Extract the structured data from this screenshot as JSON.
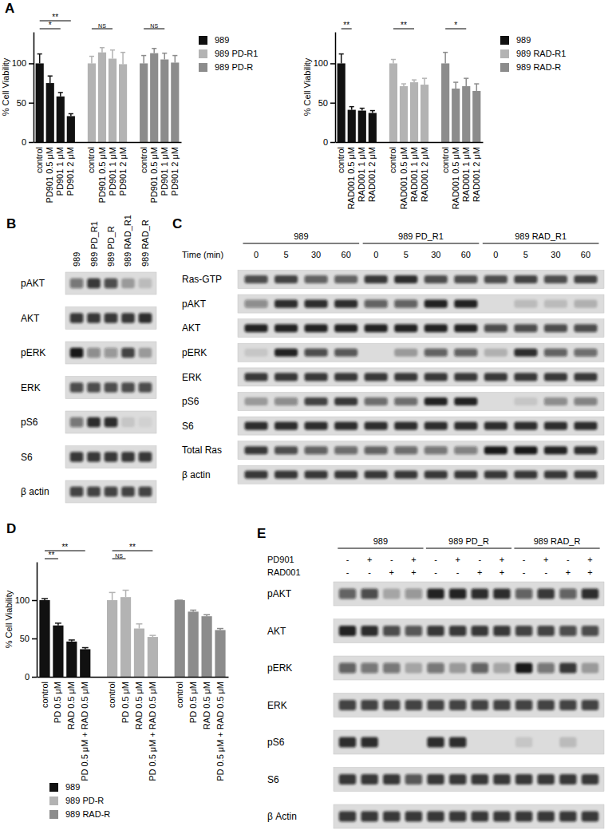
{
  "chart_data": [
    {
      "type": "bar",
      "panel": "A",
      "y_label": "% Cell Viability",
      "ylim": [
        0,
        140
      ],
      "yticks": [
        0,
        50,
        100
      ],
      "legend": "right",
      "grid": false,
      "series": [
        {
          "name": "989",
          "color": "#111111",
          "categories": [
            "control",
            "PD901 0.5 μM",
            "PD901 1 μM",
            "PD901 2 μM"
          ],
          "values": [
            100,
            75,
            58,
            33
          ],
          "errors": [
            12,
            9,
            5,
            3
          ]
        },
        {
          "name": "989 PD-R1",
          "color": "#b3b3b3",
          "categories": [
            "control",
            "PD901 0.5 μM",
            "PD901 1 μM",
            "PD901 2 μM"
          ],
          "values": [
            100,
            114,
            106,
            99
          ],
          "errors": [
            9,
            6,
            11,
            15
          ]
        },
        {
          "name": "989 PD-R",
          "color": "#8c8c8c",
          "categories": [
            "control",
            "PD901 0.5 μM",
            "PD901 1 μM",
            "PD901 2 μM"
          ],
          "values": [
            100,
            113,
            105,
            101
          ],
          "errors": [
            10,
            6,
            8,
            9
          ]
        }
      ],
      "annotations": [
        {
          "text": "*",
          "series": 0,
          "from": 0,
          "to": 2
        },
        {
          "text": "**",
          "series": 0,
          "from": 0,
          "to": 3
        },
        {
          "text": "NS",
          "series": 1,
          "from": 0,
          "to": 2
        },
        {
          "text": "NS",
          "series": 2,
          "from": 0,
          "to": 2
        }
      ]
    },
    {
      "type": "bar",
      "y_label": "% Cell Viability",
      "ylim": [
        0,
        140
      ],
      "yticks": [
        0,
        50,
        100
      ],
      "legend": "right",
      "grid": false,
      "series": [
        {
          "name": "989",
          "color": "#111111",
          "categories": [
            "control",
            "RAD001 0.5 μM",
            "RAD001 1 μM",
            "RAD001 2 μM"
          ],
          "values": [
            100,
            41,
            40,
            37
          ],
          "errors": [
            12,
            4,
            3,
            3
          ]
        },
        {
          "name": "989 RAD-R1",
          "color": "#b3b3b3",
          "categories": [
            "control",
            "RAD001 0.5 μM",
            "RAD001 1 μM",
            "RAD001 2 μM"
          ],
          "values": [
            100,
            71,
            76,
            73
          ],
          "errors": [
            5,
            3,
            3,
            8
          ]
        },
        {
          "name": "989 RAD-R",
          "color": "#8c8c8c",
          "categories": [
            "control",
            "RAD001 0.5 μM",
            "RAD001 1 μM",
            "RAD001 2 μM"
          ],
          "values": [
            100,
            68,
            71,
            65
          ],
          "errors": [
            14,
            8,
            10,
            9
          ]
        }
      ],
      "annotations": [
        {
          "text": "**",
          "series": 0,
          "from": 0,
          "to": 1
        },
        {
          "text": "**",
          "series": 1,
          "from": 0,
          "to": 2
        },
        {
          "text": "*",
          "series": 2,
          "from": 0,
          "to": 2
        }
      ]
    },
    {
      "type": "bar",
      "panel": "D",
      "y_label": "% Cell Viability",
      "ylim": [
        0,
        150
      ],
      "yticks": [
        0,
        50,
        100
      ],
      "legend": "bottom",
      "grid": false,
      "series": [
        {
          "name": "989",
          "color": "#111111",
          "categories": [
            "control",
            "PD 0.5 μM",
            "RAD 0.5 μM",
            "PD 0.5 μM + RAD 0.5 μM"
          ],
          "values": [
            100,
            67,
            46,
            36
          ],
          "errors": [
            2,
            3,
            2,
            2
          ]
        },
        {
          "name": "989 PD-R",
          "color": "#b3b3b3",
          "categories": [
            "control",
            "PD 0.5 μM",
            "RAD 0.5 μM",
            "PD 0.5 μM + RAD 0.5 μM"
          ],
          "values": [
            100,
            104,
            63,
            52
          ],
          "errors": [
            10,
            9,
            6,
            2
          ]
        },
        {
          "name": "989 RAD-R",
          "color": "#8c8c8c",
          "categories": [
            "control",
            "PD 0.5 μM",
            "RAD 0.5 μM",
            "PD 0.5 μM + RAD 0.5 μM"
          ],
          "values": [
            100,
            85,
            79,
            61
          ],
          "errors": [
            0,
            2,
            2,
            2
          ]
        }
      ],
      "annotations": [
        {
          "text": "**",
          "series": 0,
          "from": 0,
          "to": 1
        },
        {
          "text": "**",
          "series": 0,
          "from": 0,
          "to": 3
        },
        {
          "text": "NS",
          "series": 1,
          "from": 0,
          "to": 1
        },
        {
          "text": "**",
          "series": 1,
          "from": 0,
          "to": 3
        }
      ]
    }
  ],
  "blots": [
    {
      "panel": "B",
      "lanes": [
        "989",
        "989 PD_R1",
        "989 PD_R",
        "989 RAD_R1",
        "989 RAD_R"
      ],
      "rows": [
        {
          "name": "pAKT",
          "intensity": [
            0.5,
            0.8,
            0.7,
            0.3,
            0.15
          ]
        },
        {
          "name": "AKT",
          "intensity": [
            0.8,
            0.8,
            0.8,
            0.8,
            0.85
          ]
        },
        {
          "name": "pERK",
          "intensity": [
            0.95,
            0.4,
            0.35,
            0.75,
            0.3
          ]
        },
        {
          "name": "ERK",
          "intensity": [
            0.7,
            0.7,
            0.7,
            0.7,
            0.7
          ]
        },
        {
          "name": "pS6",
          "intensity": [
            0.5,
            0.85,
            0.85,
            0.1,
            0.05
          ]
        },
        {
          "name": "S6",
          "intensity": [
            0.8,
            0.8,
            0.8,
            0.8,
            0.8
          ]
        },
        {
          "name": "β actin",
          "intensity": [
            0.75,
            0.75,
            0.75,
            0.75,
            0.75
          ]
        }
      ]
    },
    {
      "panel": "C",
      "groups": [
        "989",
        "989 PD_R1",
        "989 RAD_R1"
      ],
      "treatments": [
        {
          "name": "Time (min)",
          "lanes": [
            0,
            5,
            30,
            60,
            0,
            5,
            30,
            60,
            0,
            5,
            30,
            60
          ]
        }
      ],
      "rows": [
        {
          "name": "Ras-GTP",
          "intensity": [
            0.7,
            0.75,
            0.6,
            0.6,
            0.8,
            0.85,
            0.7,
            0.7,
            0.7,
            0.75,
            0.7,
            0.75
          ]
        },
        {
          "name": "pAKT",
          "intensity": [
            0.4,
            0.85,
            0.85,
            0.85,
            0.6,
            0.6,
            0.9,
            0.9,
            0,
            0.15,
            0.15,
            0.2
          ]
        },
        {
          "name": "AKT",
          "intensity": [
            0.9,
            0.9,
            0.9,
            0.9,
            0.9,
            0.9,
            0.9,
            0.9,
            0.7,
            0.7,
            0.7,
            0.7
          ]
        },
        {
          "name": "pERK",
          "intensity": [
            0.1,
            0.9,
            0.7,
            0.65,
            0,
            0.3,
            0.6,
            0.6,
            0.2,
            0.85,
            0.6,
            0.55
          ]
        },
        {
          "name": "ERK",
          "intensity": [
            0.8,
            0.8,
            0.8,
            0.8,
            0.8,
            0.8,
            0.8,
            0.8,
            0.8,
            0.8,
            0.8,
            0.8
          ]
        },
        {
          "name": "pS6",
          "intensity": [
            0.3,
            0.4,
            0.75,
            0.8,
            0.55,
            0.55,
            0.9,
            0.9,
            0,
            0.1,
            0.4,
            0.45
          ]
        },
        {
          "name": "S6",
          "intensity": [
            0.85,
            0.85,
            0.85,
            0.85,
            0.85,
            0.85,
            0.85,
            0.85,
            0.85,
            0.85,
            0.85,
            0.85
          ]
        },
        {
          "name": "Total Ras",
          "intensity": [
            0.8,
            0.7,
            0.6,
            0.55,
            0.6,
            0.55,
            0.5,
            0.45,
            0.95,
            0.95,
            0.9,
            0.85
          ]
        },
        {
          "name": "β actin",
          "intensity": [
            0.8,
            0.8,
            0.8,
            0.8,
            0.8,
            0.8,
            0.8,
            0.8,
            0.8,
            0.8,
            0.8,
            0.8
          ]
        }
      ]
    },
    {
      "panel": "E",
      "groups": [
        "989",
        "989 PD_R",
        "989 RAD_R"
      ],
      "treatments": [
        {
          "name": "PD901",
          "lanes": [
            "-",
            "+",
            "-",
            "+",
            "-",
            "+",
            "-",
            "+",
            "-",
            "+",
            "-",
            "+"
          ]
        },
        {
          "name": "RAD001",
          "lanes": [
            "-",
            "-",
            "+",
            "+",
            "-",
            "-",
            "+",
            "+",
            "-",
            "-",
            "+",
            "+"
          ]
        }
      ],
      "rows": [
        {
          "name": "pAKT",
          "intensity": [
            0.6,
            0.7,
            0.25,
            0.35,
            0.9,
            0.9,
            0.85,
            0.85,
            0.6,
            0.8,
            0.6,
            0.85
          ]
        },
        {
          "name": "AKT",
          "intensity": [
            0.9,
            0.85,
            0.7,
            0.65,
            0.8,
            0.8,
            0.8,
            0.8,
            0.75,
            0.75,
            0.7,
            0.7
          ]
        },
        {
          "name": "pERK",
          "intensity": [
            0.6,
            0.5,
            0.5,
            0.25,
            0.5,
            0.3,
            0.6,
            0.25,
            0.95,
            0.5,
            0.8,
            0.3
          ]
        },
        {
          "name": "ERK",
          "intensity": [
            0.75,
            0.75,
            0.75,
            0.75,
            0.75,
            0.75,
            0.75,
            0.75,
            0.75,
            0.75,
            0.75,
            0.75
          ]
        },
        {
          "name": "pS6",
          "intensity": [
            0.85,
            0.85,
            0,
            0,
            0.85,
            0.85,
            0,
            0,
            0.1,
            0,
            0.15,
            0
          ]
        },
        {
          "name": "S6",
          "intensity": [
            0.8,
            0.8,
            0.8,
            0.65,
            0.8,
            0.8,
            0.8,
            0.8,
            0.8,
            0.8,
            0.8,
            0.8
          ]
        },
        {
          "name": "β Actin",
          "intensity": [
            0.8,
            0.8,
            0.8,
            0.8,
            0.8,
            0.8,
            0.8,
            0.8,
            0.8,
            0.8,
            0.8,
            0.8
          ]
        }
      ]
    }
  ]
}
